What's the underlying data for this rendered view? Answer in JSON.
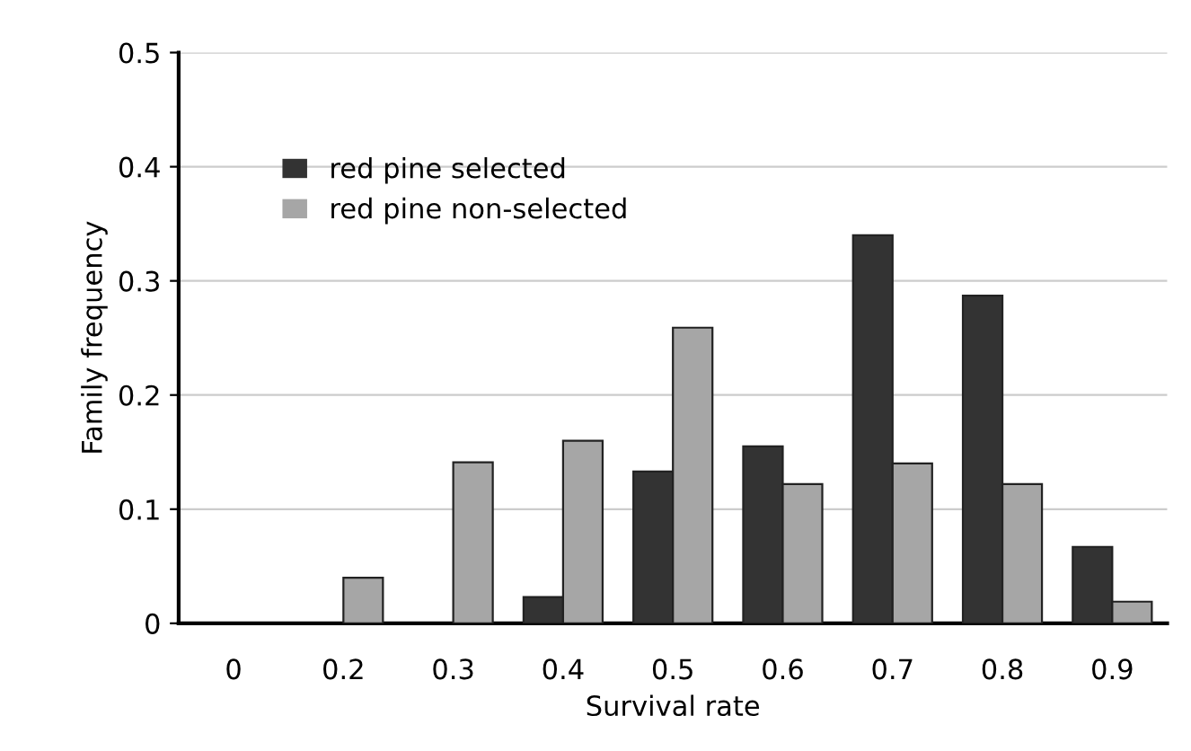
{
  "chart_data": {
    "type": "bar",
    "xlabel": "Survival rate",
    "ylabel": "Family frequency",
    "categories": [
      "0",
      "0.2",
      "0.3",
      "0.4",
      "0.5",
      "0.6",
      "0.7",
      "0.8",
      "0.9"
    ],
    "series": [
      {
        "name": "red pine selected",
        "color": "#333333",
        "values": [
          0,
          0,
          0,
          0.023,
          0.133,
          0.155,
          0.34,
          0.287,
          0.067
        ]
      },
      {
        "name": "red pine non-selected",
        "color": "#a6a6a6",
        "values": [
          0,
          0.04,
          0.141,
          0.16,
          0.259,
          0.122,
          0.14,
          0.122,
          0.019
        ]
      }
    ],
    "ylim": [
      0,
      0.5
    ],
    "yticks": [
      0,
      0.1,
      0.2,
      0.3,
      0.4,
      0.5
    ],
    "grid": "y",
    "legend": "top left"
  }
}
